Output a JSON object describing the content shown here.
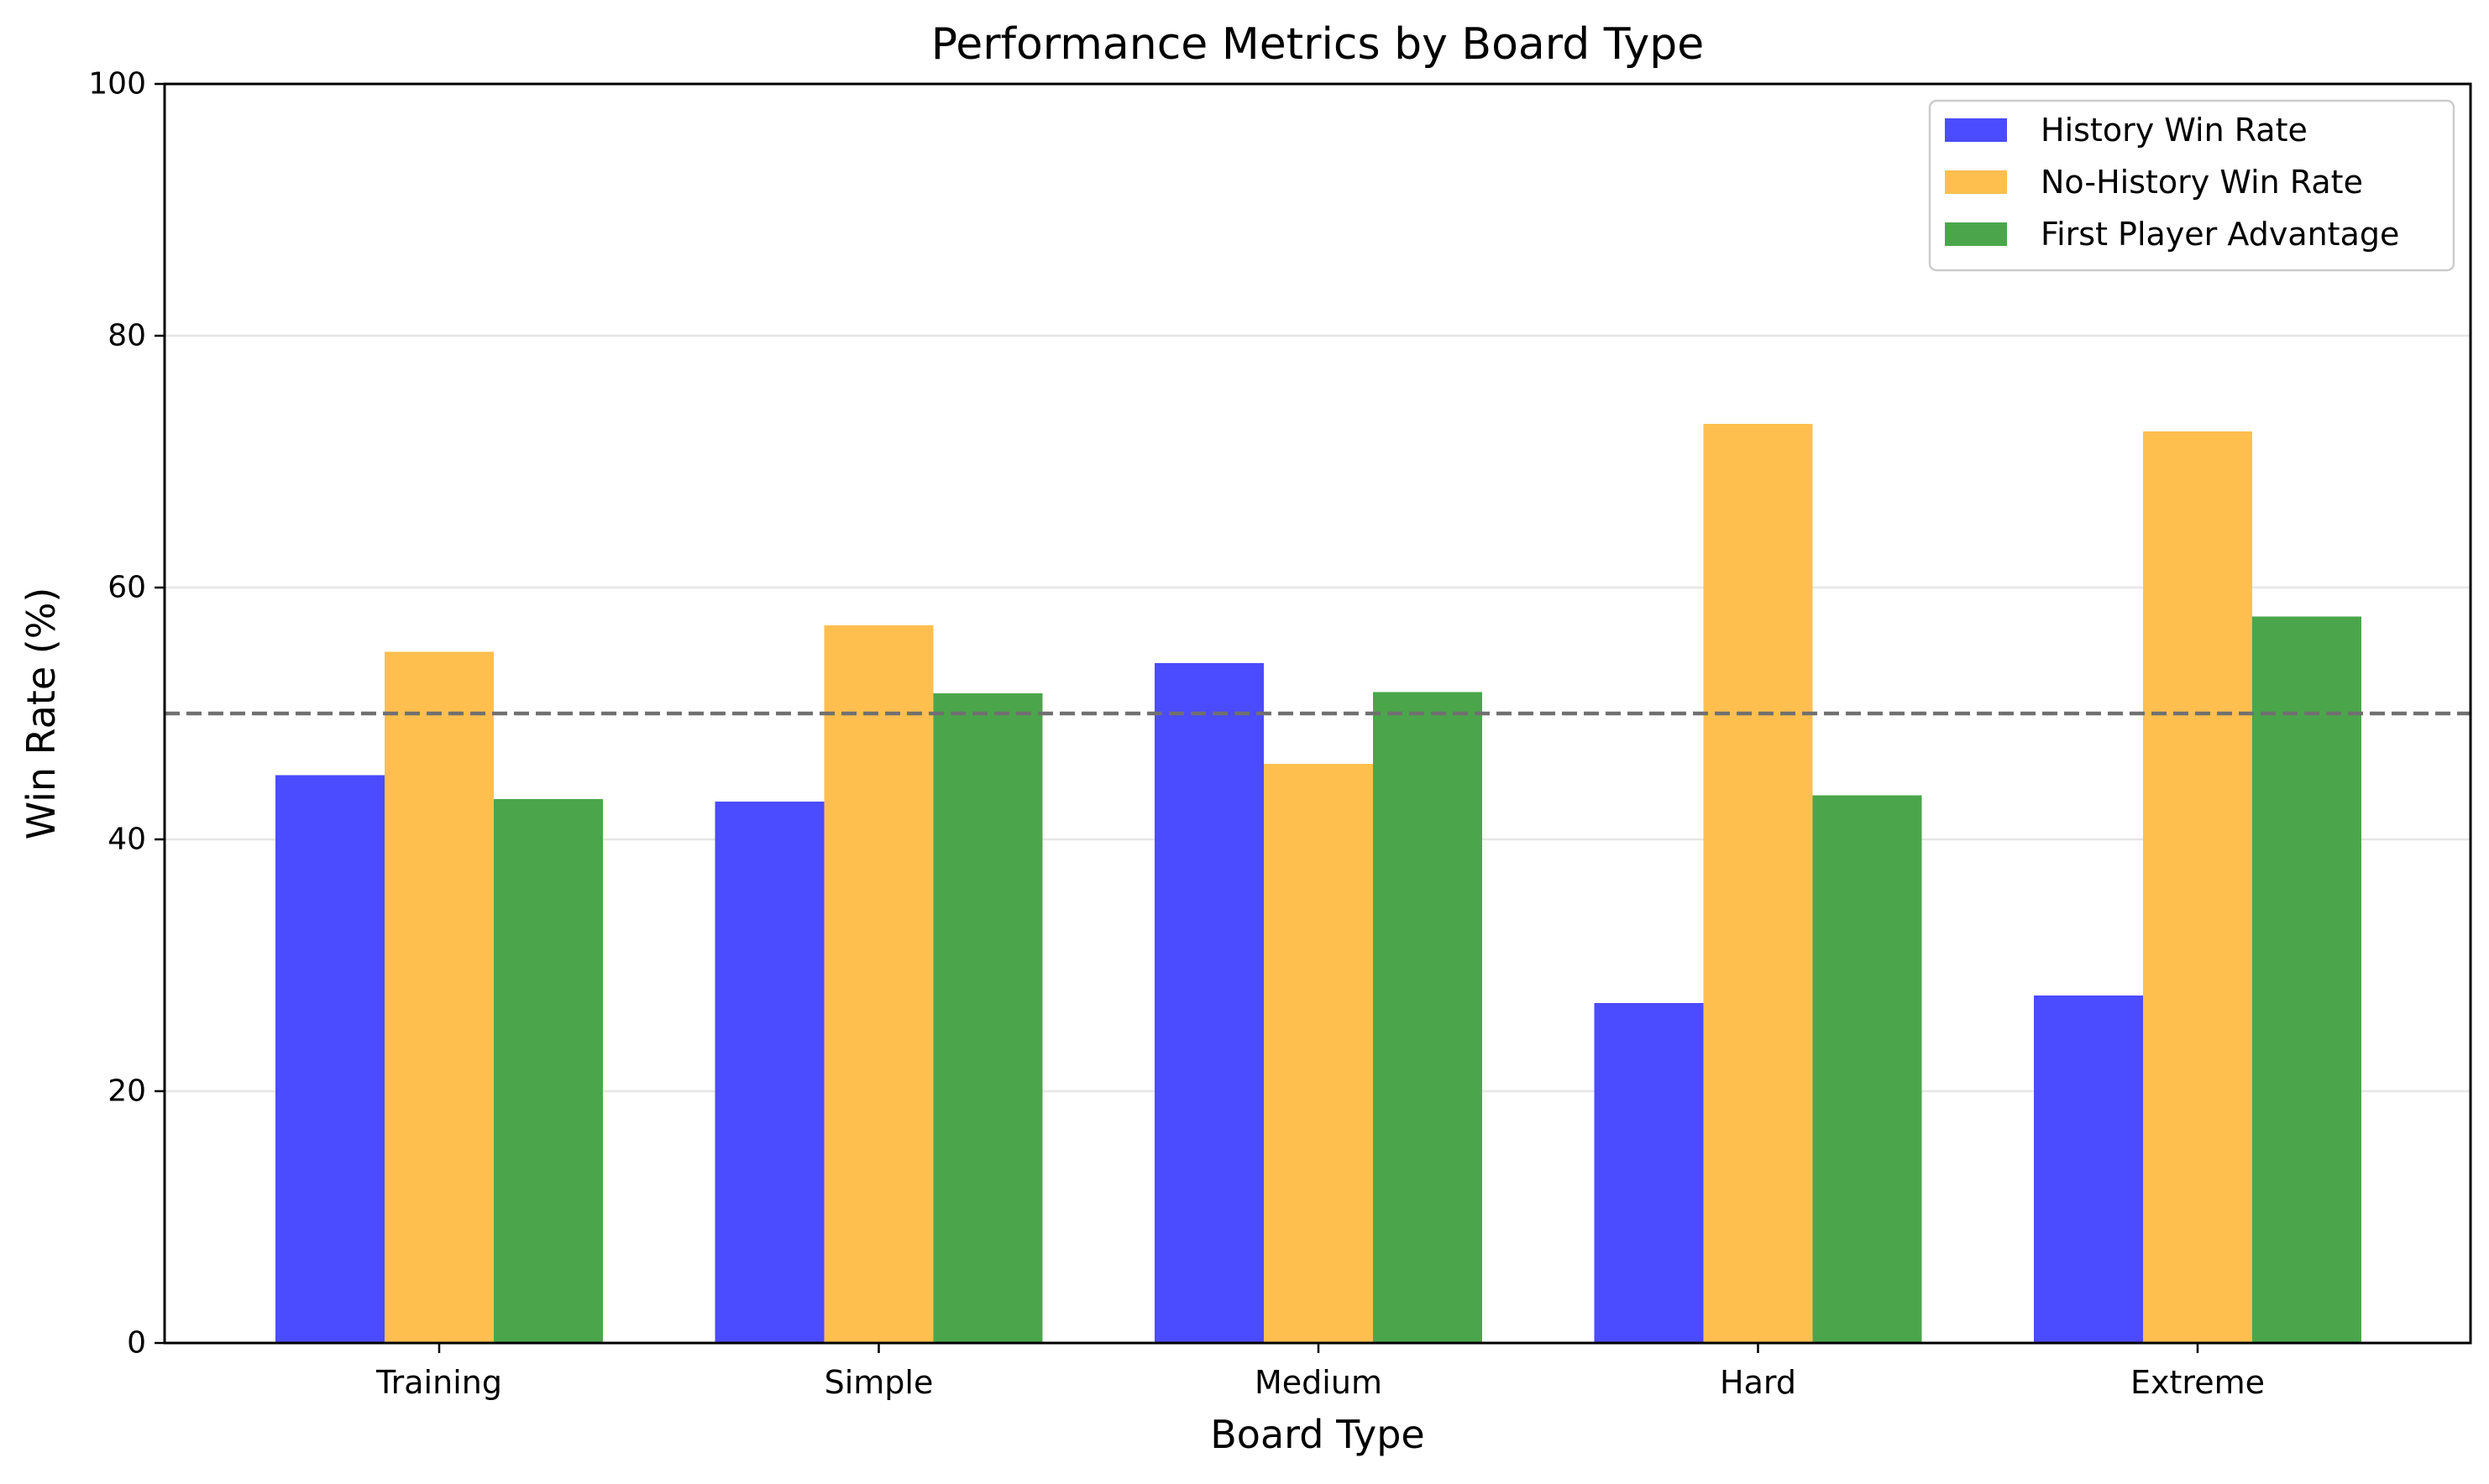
{
  "chart_data": {
    "type": "bar",
    "title": "Performance Metrics by Board Type",
    "xlabel": "Board Type",
    "ylabel": "Win Rate (%)",
    "categories": [
      "Training",
      "Simple",
      "Medium",
      "Hard",
      "Extreme"
    ],
    "series": [
      {
        "name": "History Win Rate",
        "color": "#4b4bff",
        "values": [
          45.1,
          43.0,
          54.0,
          27.0,
          27.6
        ]
      },
      {
        "name": "No-History Win Rate",
        "color": "#ffbf4f",
        "values": [
          54.9,
          57.0,
          46.0,
          73.0,
          72.4
        ]
      },
      {
        "name": "First Player Advantage",
        "color": "#4ba64b",
        "values": [
          43.2,
          51.6,
          51.7,
          43.5,
          57.7
        ]
      }
    ],
    "ylim": [
      0,
      100
    ],
    "yticks": [
      0,
      20,
      40,
      60,
      80,
      100
    ],
    "reference_line": {
      "value": 50,
      "style": "dashed",
      "color": "#707070"
    },
    "grid": "horizontal",
    "legend_position": "top-right"
  }
}
